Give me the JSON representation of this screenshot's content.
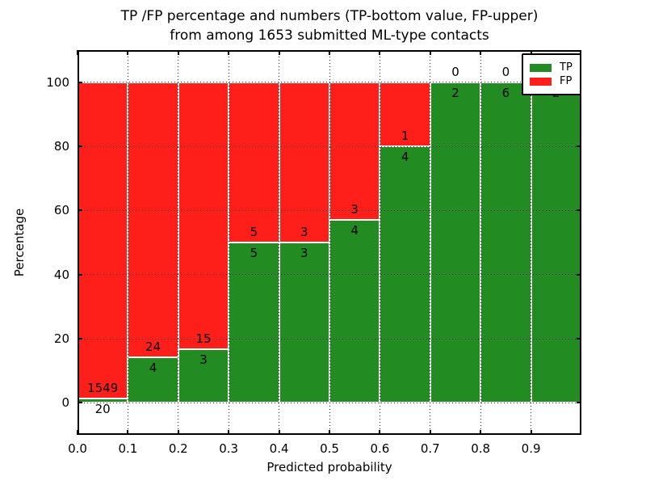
{
  "figure": {
    "title_line1": "TP /FP percentage and numbers (TP-bottom value, FP-upper)",
    "title_line2": "from among 1653 submitted ML-type contacts"
  },
  "axes": {
    "xlabel": "Predicted probability",
    "ylabel": "Percentage"
  },
  "legend": {
    "items": [
      {
        "label": "TP",
        "color": "#228b22"
      },
      {
        "label": "FP",
        "color": "#ff1f1a"
      }
    ]
  },
  "chart_data": {
    "type": "bar",
    "stacked": true,
    "title": "TP /FP percentage and numbers (TP-bottom value, FP-upper) from among 1653 submitted ML-type contacts",
    "xlabel": "Predicted probability",
    "ylabel": "Percentage",
    "total_contacts": 1653,
    "xlim": [
      0.0,
      1.0
    ],
    "ylim": [
      -10,
      110
    ],
    "x_tick_values": [
      0.0,
      0.1,
      0.2,
      0.3,
      0.4,
      0.5,
      0.6,
      0.7,
      0.8,
      0.9
    ],
    "x_tick_labels": [
      "0.0",
      "0.1",
      "0.2",
      "0.3",
      "0.4",
      "0.5",
      "0.6",
      "0.7",
      "0.8",
      "0.9"
    ],
    "y_tick_values": [
      0,
      20,
      40,
      60,
      80,
      100
    ],
    "y_tick_labels": [
      "0",
      "20",
      "40",
      "60",
      "80",
      "100"
    ],
    "grid": true,
    "grid_style": "dotted",
    "legend_position": "upper right",
    "series_colors": {
      "TP": "#228b22",
      "FP": "#ff1f1a"
    },
    "bar_edge_color": "#ffffff",
    "annotation_note": "FP count printed above TP/FP boundary, TP count below it",
    "bins": [
      {
        "x_range": [
          0.0,
          0.1
        ],
        "tp_count": 20,
        "fp_count": 1549,
        "tp_pct": 1.3,
        "fp_pct": 98.7
      },
      {
        "x_range": [
          0.1,
          0.2
        ],
        "tp_count": 4,
        "fp_count": 24,
        "tp_pct": 14.3,
        "fp_pct": 85.7
      },
      {
        "x_range": [
          0.2,
          0.3
        ],
        "tp_count": 3,
        "fp_count": 15,
        "tp_pct": 16.7,
        "fp_pct": 83.3
      },
      {
        "x_range": [
          0.3,
          0.4
        ],
        "tp_count": 5,
        "fp_count": 5,
        "tp_pct": 50.0,
        "fp_pct": 50.0
      },
      {
        "x_range": [
          0.4,
          0.5
        ],
        "tp_count": 3,
        "fp_count": 3,
        "tp_pct": 50.0,
        "fp_pct": 50.0
      },
      {
        "x_range": [
          0.5,
          0.6
        ],
        "tp_count": 4,
        "fp_count": 3,
        "tp_pct": 57.1,
        "fp_pct": 42.9
      },
      {
        "x_range": [
          0.6,
          0.7
        ],
        "tp_count": 4,
        "fp_count": 1,
        "tp_pct": 80.0,
        "fp_pct": 20.0
      },
      {
        "x_range": [
          0.7,
          0.8
        ],
        "tp_count": 2,
        "fp_count": 0,
        "tp_pct": 100.0,
        "fp_pct": 0.0
      },
      {
        "x_range": [
          0.8,
          0.9
        ],
        "tp_count": 6,
        "fp_count": 0,
        "tp_pct": 100.0,
        "fp_pct": 0.0
      },
      {
        "x_range": [
          0.9,
          1.0
        ],
        "tp_count": 2,
        "fp_count": 0,
        "tp_pct": 100.0,
        "fp_pct": 0.0
      }
    ]
  }
}
